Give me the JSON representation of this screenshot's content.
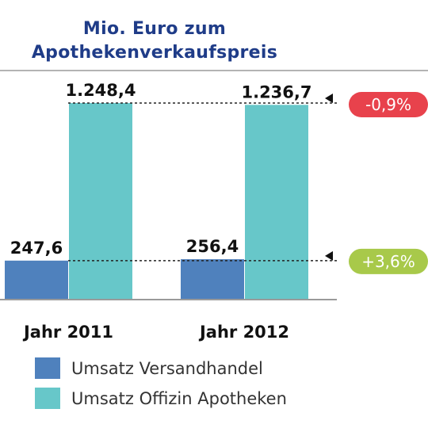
{
  "chart_data": {
    "type": "bar",
    "title_lines": [
      "Mio. Euro zum",
      "Apothekenverkaufspreis"
    ],
    "categories": [
      "Jahr 2011",
      "Jahr 2012"
    ],
    "series": [
      {
        "name": "Umsatz Versandhandel",
        "values": [
          247.6,
          256.4
        ],
        "labels": [
          "247,6",
          "256,4"
        ],
        "color": "#4f81bd"
      },
      {
        "name": "Umsatz Offizin Apotheken",
        "values": [
          1248.4,
          1236.7
        ],
        "labels": [
          "1.248,4",
          "1.236,7"
        ],
        "color": "#67c7c9"
      }
    ],
    "ylim": [
      0,
      1300
    ],
    "grid": false,
    "legend_position": "bottom-left",
    "annotations": [
      {
        "text": "-0,9%",
        "series": "Umsatz Offizin Apotheken",
        "color": "#e8424c"
      },
      {
        "text": "+3,6%",
        "series": "Umsatz Versandhandel",
        "color": "#a8c94a"
      }
    ]
  }
}
